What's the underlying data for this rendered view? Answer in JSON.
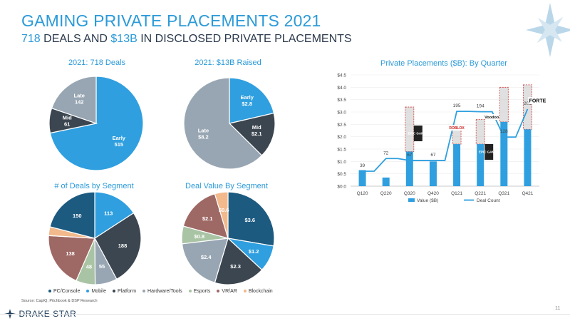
{
  "header": {
    "title": "GAMING PRIVATE PLACEMENTS 2021",
    "subtitle_num1": "718",
    "subtitle_mid": " DEALS AND ",
    "subtitle_num2": "$13B",
    "subtitle_end": " IN DISCLOSED PRIVATE PLACEMENTS"
  },
  "colors": {
    "accent": "#2b9ad8",
    "dark": "#3c4650",
    "grey": "#98a6b3",
    "navy": "#1d5a80"
  },
  "footer": {
    "source": "Source: CapIQ, Pitchbook & DSP Research",
    "page": "11",
    "logo_text": "DRAKE STAR"
  },
  "legend": [
    "PC/Console",
    "Mobile",
    "Platform",
    "Hardware/Tools",
    "Esports",
    "VR/AR",
    "Blockchain"
  ],
  "chart_data": [
    {
      "type": "pie",
      "title": "2021: 718 Deals",
      "labels": [
        "Early",
        "Mid",
        "Late"
      ],
      "values": [
        515,
        61,
        142
      ],
      "value_labels": [
        "515",
        "61",
        "142"
      ],
      "colors": [
        "#2f9fdf",
        "#3c4650",
        "#98a6b3"
      ]
    },
    {
      "type": "pie",
      "title": "2021: $13B Raised",
      "labels": [
        "Early",
        "Mid",
        "Late"
      ],
      "values": [
        2.8,
        2.1,
        8.2
      ],
      "value_labels": [
        "$2.8",
        "$2.1",
        "$8.2"
      ],
      "colors": [
        "#2f9fdf",
        "#3c4650",
        "#98a6b3"
      ]
    },
    {
      "type": "pie",
      "title": "# of Deals by Segment",
      "labels": [
        "Mobile",
        "Platform",
        "Hardware/Tools",
        "Esports",
        "VR/AR",
        "Blockchain",
        "PC/Console"
      ],
      "values": [
        113,
        188,
        55,
        48,
        138,
        22,
        150
      ],
      "value_labels": [
        "113",
        "188",
        "55",
        "48",
        "138",
        "",
        "150"
      ],
      "colors": [
        "#2f9fdf",
        "#3c4650",
        "#98a6b3",
        "#a9c4a4",
        "#9e6865",
        "#f2b98c",
        "#1d5a80"
      ]
    },
    {
      "type": "pie",
      "title": "Deal Value By Segment",
      "labels": [
        "PC/Console",
        "Mobile",
        "Platform",
        "Hardware/Tools",
        "Esports",
        "VR/AR",
        "Blockchain"
      ],
      "values": [
        3.6,
        1.2,
        2.3,
        2.4,
        0.8,
        2.1,
        0.6
      ],
      "value_labels": [
        "$3.6",
        "$1.2",
        "$2.3",
        "$2.4",
        "$0.8",
        "$2.1",
        "$0.6"
      ],
      "colors": [
        "#1d5a80",
        "#2f9fdf",
        "#3c4650",
        "#98a6b3",
        "#a9c4a4",
        "#9e6865",
        "#f2b98c"
      ]
    },
    {
      "type": "bar",
      "title": "Private Placements ($B): By Quarter",
      "categories": [
        "Q120",
        "Q220",
        "Q320",
        "Q420",
        "Q121",
        "Q221",
        "Q321",
        "Q421"
      ],
      "series": [
        {
          "name": "Value ($B)",
          "values": [
            0.65,
            0.35,
            1.4,
            1.0,
            1.7,
            1.7,
            2.6,
            2.3
          ]
        },
        {
          "name": "Deal Count",
          "values": [
            39,
            72,
            67,
            67,
            195,
            194,
            128,
            201
          ]
        }
      ],
      "stacked_deals": [
        {
          "category": "Q320",
          "bottom": 1.4,
          "top": 3.2
        },
        {
          "category": "Q121",
          "bottom": 1.7,
          "top": 2.3
        },
        {
          "category": "Q221",
          "bottom": 1.7,
          "top": 2.7
        },
        {
          "category": "Q321",
          "bottom": 2.6,
          "top": 4.0
        },
        {
          "category": "Q421",
          "bottom": 2.3,
          "top": 4.1
        }
      ],
      "logos": [
        "EPIC GAMES",
        "ROBLOX",
        "EPIC GAMES",
        "Voodoo",
        "FORTE"
      ],
      "y_ticks": [
        "$0.0",
        "$0.5",
        "$1.0",
        "$1.5",
        "$2.0",
        "$2.5",
        "$3.0",
        "$3.5",
        "$4.0",
        "$4.5"
      ],
      "ylim": [
        0,
        4.5
      ],
      "count_max": 290
    }
  ]
}
